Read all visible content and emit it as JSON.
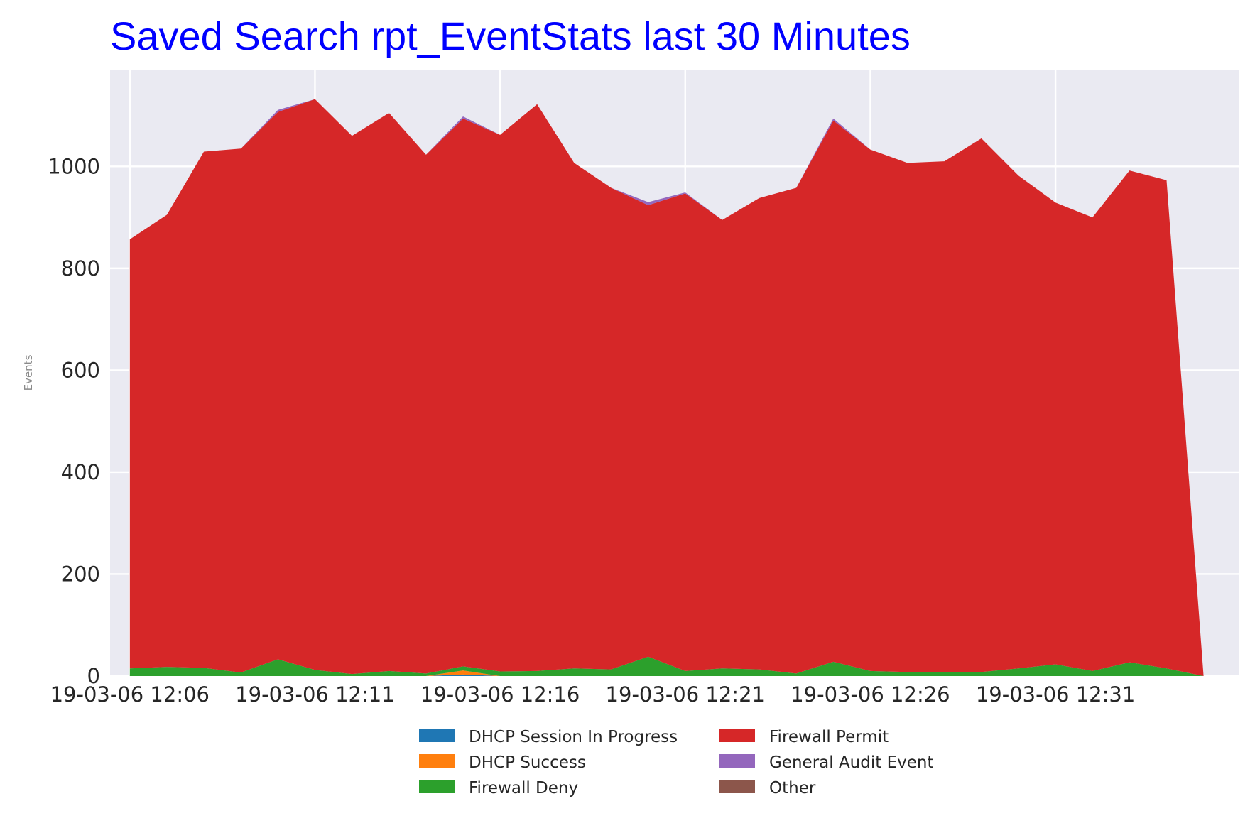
{
  "chart_data": {
    "type": "area",
    "stacked": true,
    "title": "Saved Search rpt_EventStats last 30 Minutes",
    "title_color": "#0000ff",
    "xlabel": "",
    "ylabel": "Events",
    "ylim": [
      0,
      1190
    ],
    "yticks": [
      0,
      200,
      400,
      600,
      800,
      1000
    ],
    "xlim": [
      "19-03-06 12:05:28",
      "19-03-06 12:35:58"
    ],
    "x_tick_labels": [
      {
        "x": "19-03-06 12:06",
        "label": "19-03-06 12:06"
      },
      {
        "x": "19-03-06 12:11",
        "label": "19-03-06 12:11"
      },
      {
        "x": "19-03-06 12:16",
        "label": "19-03-06 12:16"
      },
      {
        "x": "19-03-06 12:21",
        "label": "19-03-06 12:21"
      },
      {
        "x": "19-03-06 12:26",
        "label": "19-03-06 12:26"
      },
      {
        "x": "19-03-06 12:31",
        "label": "19-03-06 12:31"
      }
    ],
    "grid": true,
    "background": "#eaeaf2",
    "legend_position": "bottom-center",
    "x": [
      "19-03-06 12:06",
      "19-03-06 12:07",
      "19-03-06 12:08",
      "19-03-06 12:09",
      "19-03-06 12:10",
      "19-03-06 12:11",
      "19-03-06 12:12",
      "19-03-06 12:13",
      "19-03-06 12:14",
      "19-03-06 12:15",
      "19-03-06 12:16",
      "19-03-06 12:17",
      "19-03-06 12:18",
      "19-03-06 12:19",
      "19-03-06 12:20",
      "19-03-06 12:21",
      "19-03-06 12:22",
      "19-03-06 12:23",
      "19-03-06 12:24",
      "19-03-06 12:25",
      "19-03-06 12:26",
      "19-03-06 12:27",
      "19-03-06 12:28",
      "19-03-06 12:29",
      "19-03-06 12:30",
      "19-03-06 12:31",
      "19-03-06 12:32",
      "19-03-06 12:33",
      "19-03-06 12:34",
      "19-03-06 12:35"
    ],
    "series": [
      {
        "name": "DHCP Session In Progress",
        "color": "#1f77b4",
        "values": [
          0,
          0,
          0,
          0,
          0,
          0,
          0,
          0,
          0,
          3,
          0,
          0,
          0,
          0,
          0,
          0,
          0,
          0,
          0,
          0,
          0,
          0,
          0,
          0,
          0,
          0,
          0,
          0,
          0,
          0
        ]
      },
      {
        "name": "DHCP Success",
        "color": "#ff7f0e",
        "values": [
          0,
          0,
          0,
          0,
          0,
          0,
          0,
          0,
          0,
          8,
          0,
          0,
          0,
          0,
          0,
          0,
          0,
          0,
          0,
          0,
          0,
          0,
          0,
          0,
          0,
          0,
          0,
          0,
          0,
          0
        ]
      },
      {
        "name": "Firewall Deny",
        "color": "#2ca02c",
        "values": [
          15,
          18,
          16,
          7,
          33,
          12,
          4,
          10,
          5,
          8,
          9,
          10,
          15,
          13,
          38,
          10,
          15,
          13,
          5,
          28,
          10,
          8,
          8,
          8,
          15,
          23,
          10,
          27,
          15,
          0
        ]
      },
      {
        "name": "Firewall Permit",
        "color": "#d62728",
        "values": [
          842,
          887,
          1013,
          1028,
          1074,
          1120,
          1056,
          1095,
          1018,
          1075,
          1053,
          1112,
          992,
          945,
          886,
          937,
          880,
          925,
          953,
          1062,
          1023,
          999,
          1002,
          1047,
          967,
          906,
          890,
          965,
          958,
          0
        ]
      },
      {
        "name": "General Audit Event",
        "color": "#9467bd",
        "values": [
          0,
          0,
          0,
          0,
          4,
          0,
          0,
          0,
          0,
          4,
          0,
          0,
          0,
          0,
          6,
          2,
          0,
          0,
          0,
          4,
          0,
          0,
          0,
          0,
          0,
          0,
          0,
          0,
          0,
          0
        ]
      },
      {
        "name": "Other",
        "color": "#8c564b",
        "values": [
          0,
          0,
          0,
          0,
          0,
          0,
          0,
          0,
          0,
          0,
          0,
          0,
          0,
          0,
          0,
          0,
          0,
          0,
          0,
          0,
          0,
          0,
          0,
          0,
          0,
          0,
          0,
          0,
          0,
          0
        ]
      }
    ]
  }
}
